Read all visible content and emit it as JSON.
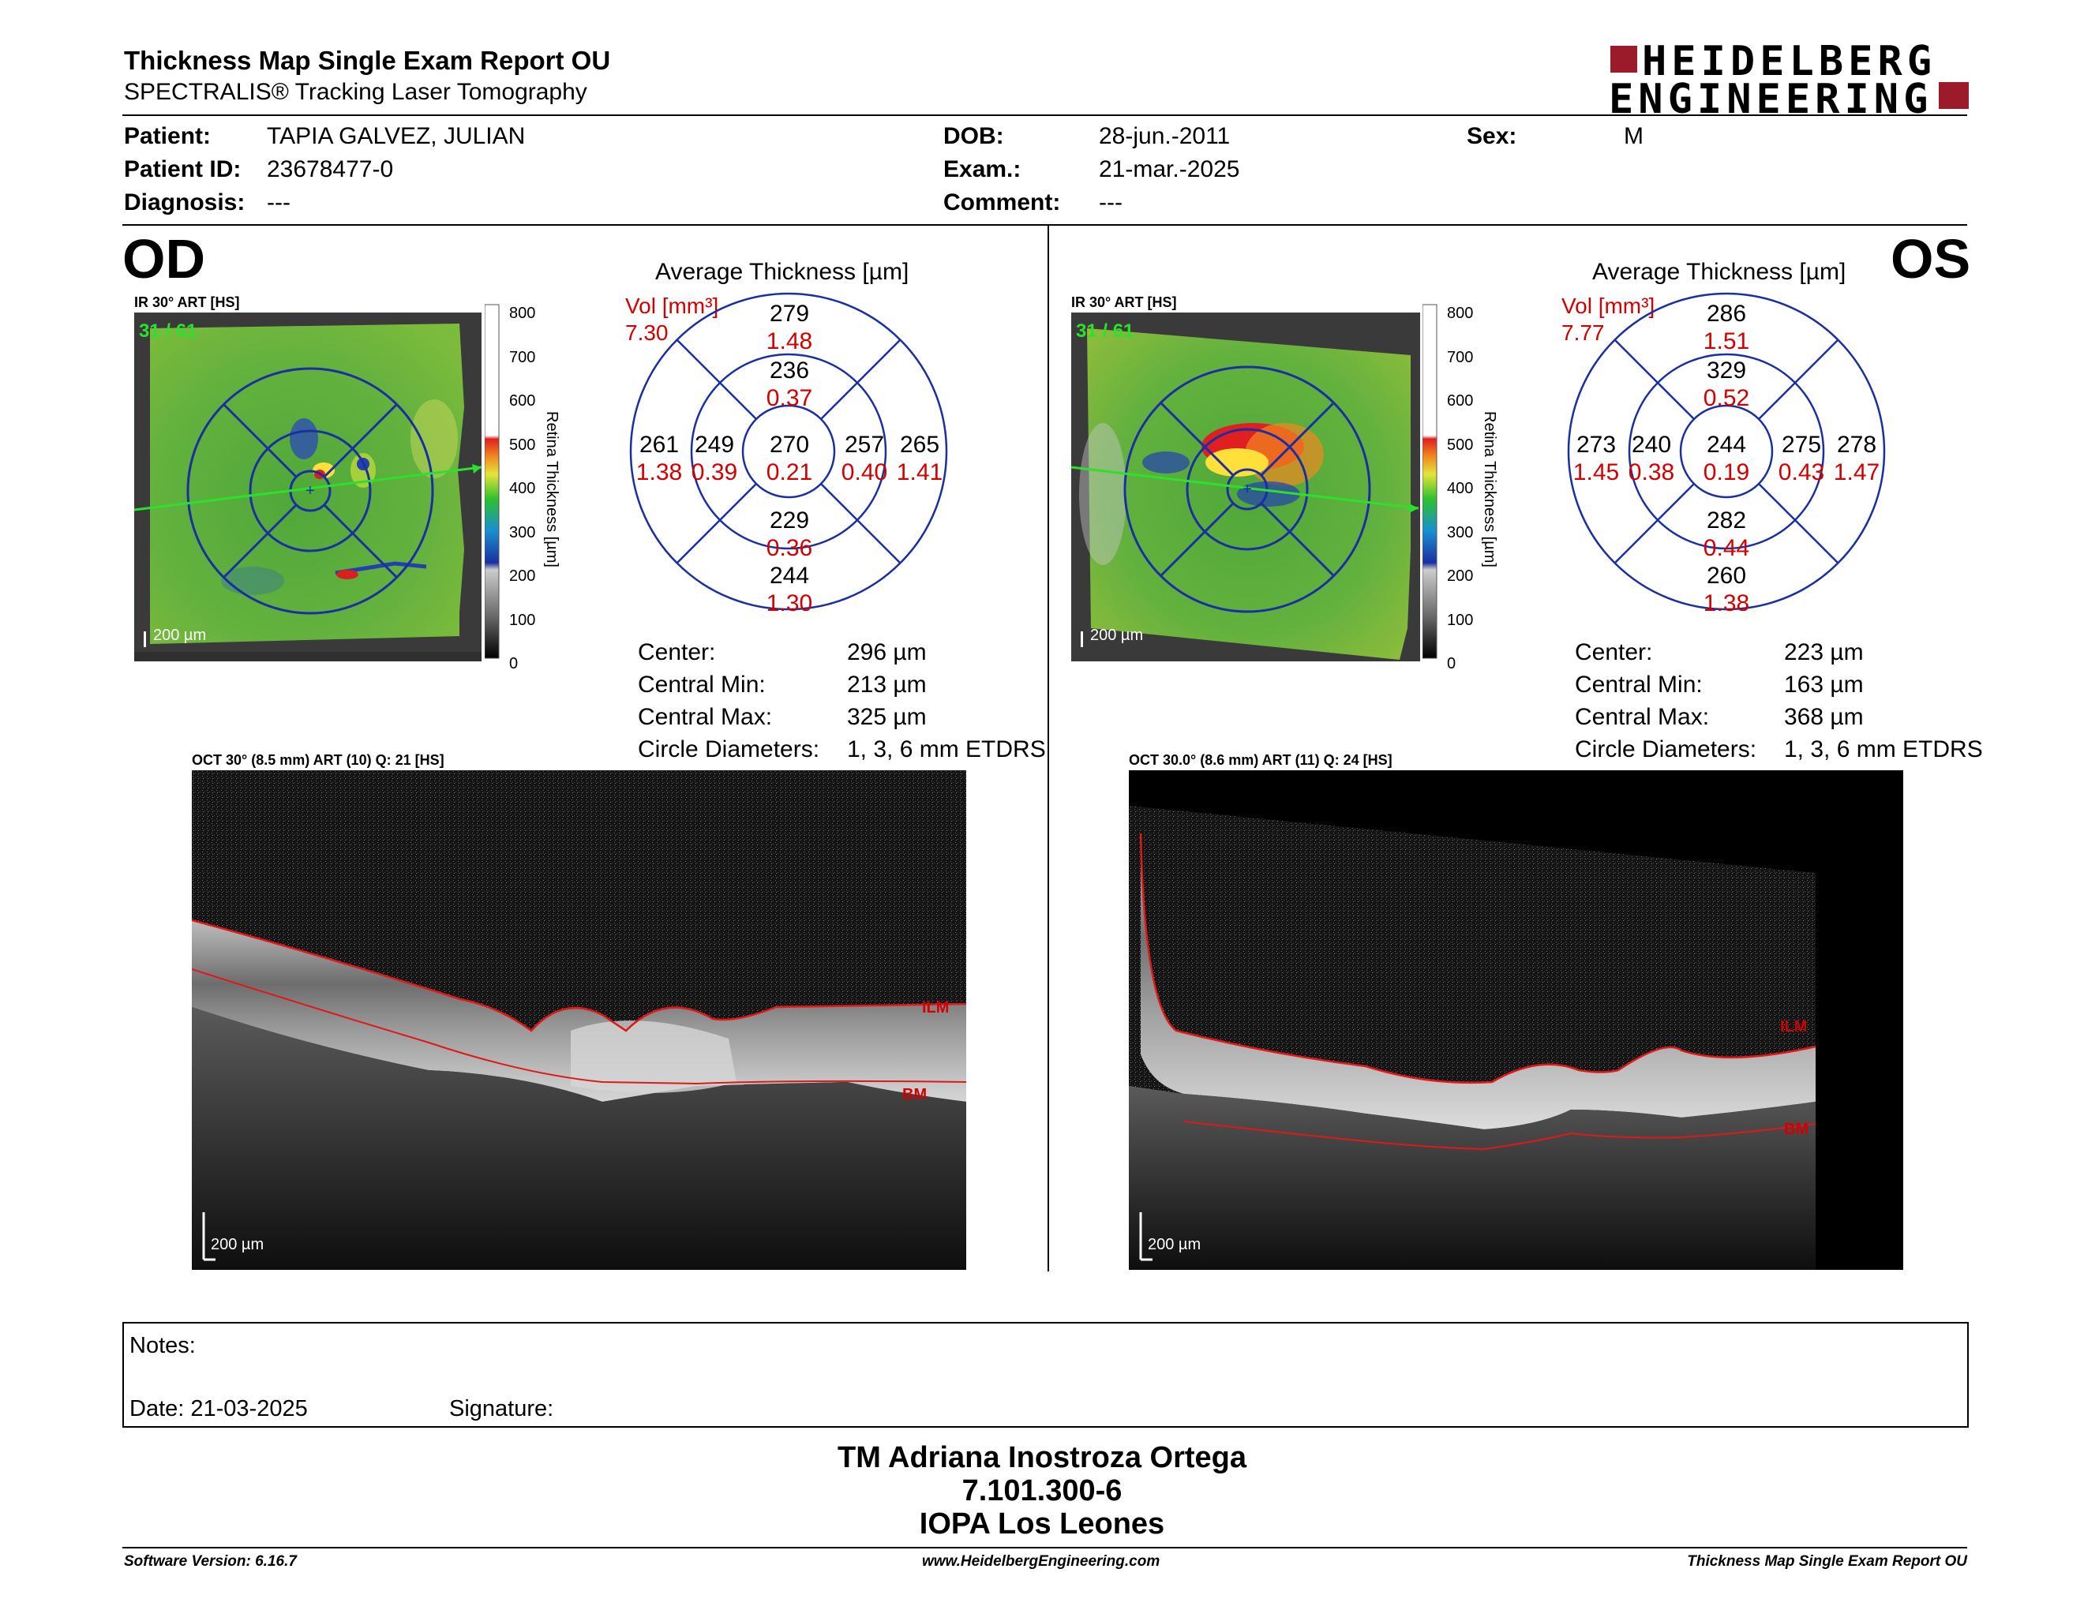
{
  "header": {
    "title": "Thickness Map Single Exam Report OU",
    "subtitle": "SPECTRALIS® Tracking Laser Tomography",
    "logo_line1": "HEIDELBERG",
    "logo_line2": "ENGINEERING"
  },
  "patient": {
    "patient_label": "Patient:",
    "patient_value": "TAPIA GALVEZ, JULIAN",
    "id_label": "Patient ID:",
    "id_value": "23678477-0",
    "diagnosis_label": "Diagnosis:",
    "diagnosis_value": "---",
    "dob_label": "DOB:",
    "dob_value": "28-jun.-2011",
    "exam_label": "Exam.:",
    "exam_value": "21-mar.-2025",
    "comment_label": "Comment:",
    "comment_value": "---",
    "sex_label": "Sex:",
    "sex_value": "M"
  },
  "od": {
    "eye": "OD",
    "ir_label": "IR 30° ART [HS]",
    "frame": "31 / 61",
    "scale": "200 µm",
    "avg_title": "Average Thickness [µm]",
    "vol_label": "Vol [mm³]",
    "vol_value": "7.30",
    "grid": {
      "sup_out": "279",
      "sup_out_v": "1.48",
      "sup_in": "236",
      "sup_in_v": "0.37",
      "tmp_out": "261",
      "tmp_out_v": "1.38",
      "tmp_in": "249",
      "tmp_in_v": "0.39",
      "center": "270",
      "center_v": "0.21",
      "nas_in": "257",
      "nas_in_v": "0.40",
      "nas_out": "265",
      "nas_out_v": "1.41",
      "inf_in": "229",
      "inf_in_v": "0.36",
      "inf_out": "244",
      "inf_out_v": "1.30"
    },
    "center_label": "Center:",
    "center_value": "296 µm",
    "cmin_label": "Central Min:",
    "cmin_value": "213 µm",
    "cmax_label": "Central Max:",
    "cmax_value": "325 µm",
    "diam_label": "Circle Diameters:",
    "diam_value": "1, 3, 6 mm ETDRS",
    "oct_label": "OCT 30° (8.5 mm) ART (10) Q: 21 [HS]",
    "ilm": "ILM",
    "bm": "BM"
  },
  "os": {
    "eye": "OS",
    "ir_label": "IR 30° ART [HS]",
    "frame": "31 / 61",
    "scale": "200 µm",
    "avg_title": "Average Thickness [µm]",
    "vol_label": "Vol [mm³]",
    "vol_value": "7.77",
    "grid": {
      "sup_out": "286",
      "sup_out_v": "1.51",
      "sup_in": "329",
      "sup_in_v": "0.52",
      "tmp_out": "273",
      "tmp_out_v": "1.45",
      "tmp_in": "240",
      "tmp_in_v": "0.38",
      "center": "244",
      "center_v": "0.19",
      "nas_in": "275",
      "nas_in_v": "0.43",
      "nas_out": "278",
      "nas_out_v": "1.47",
      "inf_in": "282",
      "inf_in_v": "0.44",
      "inf_out": "260",
      "inf_out_v": "1.38"
    },
    "center_label": "Center:",
    "center_value": "223 µm",
    "cmin_label": "Central Min:",
    "cmin_value": "163 µm",
    "cmax_label": "Central Max:",
    "cmax_value": "368 µm",
    "diam_label": "Circle Diameters:",
    "diam_value": "1, 3, 6 mm ETDRS",
    "oct_label": "OCT 30.0° (8.6 mm) ART (11) Q: 24 [HS]",
    "ilm": "ILM",
    "bm": "BM"
  },
  "colorbar": {
    "ticks": [
      "800",
      "700",
      "600",
      "500",
      "400",
      "300",
      "200",
      "100",
      "0"
    ],
    "label": "Retina Thickness [µm]"
  },
  "notes": {
    "notes_label": "Notes:",
    "date_label": "Date: 21-03-2025",
    "signature_label": "Signature:"
  },
  "signature_block": {
    "name": "TM Adriana Inostroza Ortega",
    "id": "7.101.300-6",
    "place": "IOPA Los Leones"
  },
  "footer": {
    "software": "Software Version: 6.16.7",
    "url": "www.HeidelbergEngineering.com",
    "report": "Thickness Map Single Exam Report OU"
  },
  "colors": {
    "accent_red": "#d40000",
    "grid_blue": "#1a2fa0",
    "logo_red": "#9b1b2a"
  }
}
